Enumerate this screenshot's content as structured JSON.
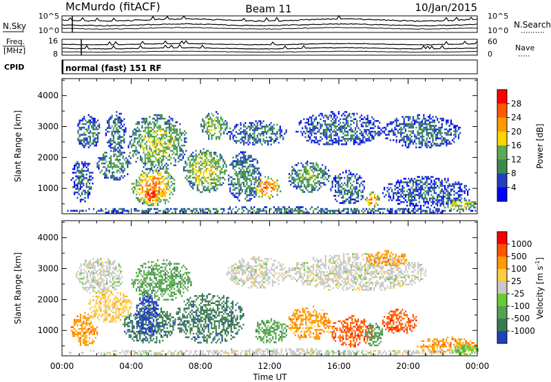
{
  "header": {
    "station": "McMurdo (fitACF)",
    "beam": "Beam 11",
    "date": "10/Jan/2015",
    "cpid_label": "CPID",
    "cpid_value": "normal (fast) 151 RF"
  },
  "status_panel": {
    "left_top_label": "N.Sky",
    "left_mid_label_1": "Freq.",
    "left_mid_label_2": "[MHz]",
    "left_mid_tick_top": "16",
    "left_mid_tick_bottom": "8",
    "left_top_tick_top": "10^5",
    "left_top_tick_bottom": "10^0",
    "right_top_label": "N.Search",
    "right_top_tick_top": "10^5",
    "right_top_tick_bottom": "10^0",
    "right_mid_label": "Nave",
    "right_mid_tick_top": "60",
    "right_mid_tick_bottom": "0"
  },
  "chart_data": [
    {
      "type": "heatmap",
      "name": "power",
      "ylabel": "Slant Range [km]",
      "xlabel": "",
      "xlim_hours": [
        0,
        24
      ],
      "ylim": [
        180,
        4550
      ],
      "y_ticks": [
        1000,
        2000,
        3000,
        4000
      ],
      "colorbar": {
        "label": "Power [dB]",
        "ticks": [
          "4",
          "8",
          "12",
          "16",
          "20",
          "24",
          "28"
        ],
        "colors": [
          "#0000ff",
          "#2040c0",
          "#3a8a50",
          "#5aaa55",
          "#ffd500",
          "#ff9900",
          "#ff5a00",
          "#ff0000"
        ],
        "range": [
          0,
          32
        ]
      },
      "regions": [
        {
          "t": [
            0.3,
            24
          ],
          "r": [
            200,
            420
          ],
          "level": 10
        },
        {
          "t": [
            0.8,
            2.2
          ],
          "r": [
            2300,
            3400
          ],
          "level": 10
        },
        {
          "t": [
            2.5,
            3.7
          ],
          "r": [
            2200,
            3500
          ],
          "level": 10
        },
        {
          "t": [
            0.5,
            1.8
          ],
          "r": [
            600,
            2000
          ],
          "level": 8
        },
        {
          "t": [
            2.0,
            4.0
          ],
          "r": [
            1300,
            2300
          ],
          "level": 12
        },
        {
          "t": [
            4.0,
            6.5
          ],
          "r": [
            450,
            1700
          ],
          "level": 24
        },
        {
          "t": [
            4.6,
            5.6
          ],
          "r": [
            500,
            1100
          ],
          "level": 30
        },
        {
          "t": [
            3.8,
            7.2
          ],
          "r": [
            1600,
            3400
          ],
          "level": 16
        },
        {
          "t": [
            7.0,
            9.5
          ],
          "r": [
            900,
            2300
          ],
          "level": 18
        },
        {
          "t": [
            8.0,
            9.5
          ],
          "r": [
            2600,
            3500
          ],
          "level": 16
        },
        {
          "t": [
            9.5,
            11.5
          ],
          "r": [
            600,
            2200
          ],
          "level": 12
        },
        {
          "t": [
            11.0,
            12.6
          ],
          "r": [
            700,
            1400
          ],
          "level": 26
        },
        {
          "t": [
            9.5,
            13.0
          ],
          "r": [
            2400,
            3200
          ],
          "level": 10
        },
        {
          "t": [
            13.0,
            15.5
          ],
          "r": [
            900,
            1900
          ],
          "level": 14
        },
        {
          "t": [
            13.5,
            18.5
          ],
          "r": [
            2400,
            3500
          ],
          "level": 9
        },
        {
          "t": [
            15.5,
            17.5
          ],
          "r": [
            500,
            1600
          ],
          "level": 10
        },
        {
          "t": [
            17.5,
            18.3
          ],
          "r": [
            400,
            900
          ],
          "level": 26
        },
        {
          "t": [
            18.5,
            23.5
          ],
          "r": [
            400,
            1400
          ],
          "level": 8
        },
        {
          "t": [
            18.5,
            23.0
          ],
          "r": [
            2300,
            3400
          ],
          "level": 9
        },
        {
          "t": [
            22.0,
            24.0
          ],
          "r": [
            300,
            700
          ],
          "level": 18
        }
      ]
    },
    {
      "type": "heatmap",
      "name": "velocity",
      "ylabel": "Slant Range [km]",
      "xlabel": "Time UT",
      "xlim_hours": [
        0,
        24
      ],
      "x_ticks": [
        "00:00",
        "04:00",
        "08:00",
        "12:00",
        "16:00",
        "20:00",
        "00:00"
      ],
      "ylim": [
        180,
        4550
      ],
      "y_ticks": [
        1000,
        2000,
        3000,
        4000
      ],
      "colorbar": {
        "label": "Velocity [m s",
        "label_sup": "-1",
        "label_end": "]",
        "ticks": [
          "1000",
          "500",
          "100",
          "25",
          "-25",
          "-100",
          "-500",
          "-1000"
        ],
        "colors": [
          "#2040c0",
          "#3a7a50",
          "#55a055",
          "#66cc33",
          "#c8c8c8",
          "#ffcc44",
          "#ff9900",
          "#ff5500",
          "#ff0000"
        ]
      },
      "regions": [
        {
          "t": [
            0.3,
            24
          ],
          "r": [
            200,
            420
          ],
          "class": 4
        },
        {
          "t": [
            0.5,
            2.0
          ],
          "r": [
            500,
            1600
          ],
          "class": 6
        },
        {
          "t": [
            0.8,
            3.5
          ],
          "r": [
            2200,
            3400
          ],
          "class": 4
        },
        {
          "t": [
            1.5,
            4.0
          ],
          "r": [
            1300,
            2300
          ],
          "class": 5
        },
        {
          "t": [
            3.5,
            6.5
          ],
          "r": [
            600,
            1800
          ],
          "class": 1
        },
        {
          "t": [
            4.2,
            5.6
          ],
          "r": [
            700,
            2300
          ],
          "class": 0
        },
        {
          "t": [
            6.5,
            10.5
          ],
          "r": [
            600,
            2200
          ],
          "class": 1
        },
        {
          "t": [
            4.0,
            7.5
          ],
          "r": [
            2000,
            3300
          ],
          "class": 2
        },
        {
          "t": [
            9.5,
            13.0
          ],
          "r": [
            2400,
            3400
          ],
          "class": 4
        },
        {
          "t": [
            11.0,
            13.0
          ],
          "r": [
            600,
            1400
          ],
          "class": 2
        },
        {
          "t": [
            13.0,
            15.5
          ],
          "r": [
            700,
            1800
          ],
          "class": 6
        },
        {
          "t": [
            13.0,
            21.0
          ],
          "r": [
            2300,
            3500
          ],
          "class": 4
        },
        {
          "t": [
            15.5,
            18.0
          ],
          "r": [
            500,
            1500
          ],
          "class": 7
        },
        {
          "t": [
            17.5,
            18.5
          ],
          "r": [
            500,
            1300
          ],
          "class": 2
        },
        {
          "t": [
            18.5,
            20.5
          ],
          "r": [
            900,
            1700
          ],
          "class": 7
        },
        {
          "t": [
            17.5,
            20.0
          ],
          "r": [
            3100,
            3600
          ],
          "class": 6
        },
        {
          "t": [
            20.5,
            24.0
          ],
          "r": [
            300,
            800
          ],
          "class": 6
        },
        {
          "t": [
            22.5,
            24.0
          ],
          "r": [
            250,
            550
          ],
          "class": 3
        }
      ]
    }
  ]
}
